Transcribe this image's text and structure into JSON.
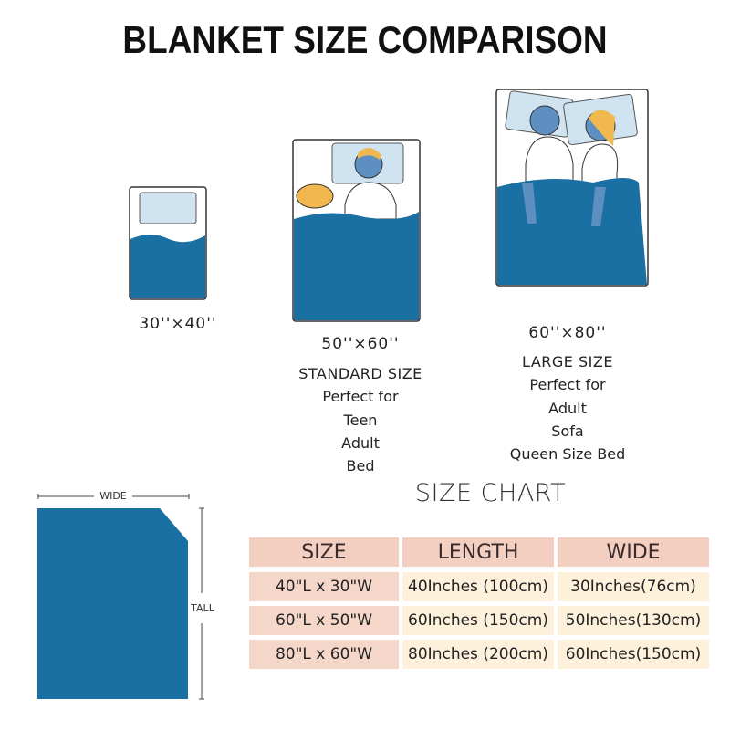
{
  "title": "BLANKET SIZE COMPARISON",
  "colors": {
    "blanket_blue": "#1a6fa3",
    "header_pink": "#f3cfc2",
    "cell_cream": "#fdf1dc"
  },
  "sizes": [
    {
      "dimension": "30''×40''",
      "lines": []
    },
    {
      "dimension": "50''×60''",
      "lines": [
        "STANDARD SIZE",
        "Perfect for",
        "Teen",
        "Adult",
        "Bed"
      ]
    },
    {
      "dimension": "60''×80''",
      "lines": [
        "LARGE SIZE",
        "Perfect for",
        "Adult",
        "Sofa",
        "Queen Size Bed"
      ]
    }
  ],
  "diagram": {
    "wide_label": "WIDE",
    "tall_label": "TALL"
  },
  "size_chart": {
    "title": "SIZE CHART",
    "headers": [
      "SIZE",
      "LENGTH",
      "WIDE"
    ],
    "rows": [
      [
        "40\"L x 30\"W",
        "40Inches (100cm)",
        "30Inches(76cm)"
      ],
      [
        "60\"L x 50\"W",
        "60Inches (150cm)",
        "50Inches(130cm)"
      ],
      [
        "80\"L x 60\"W",
        "80Inches (200cm)",
        "60Inches(150cm)"
      ]
    ]
  }
}
